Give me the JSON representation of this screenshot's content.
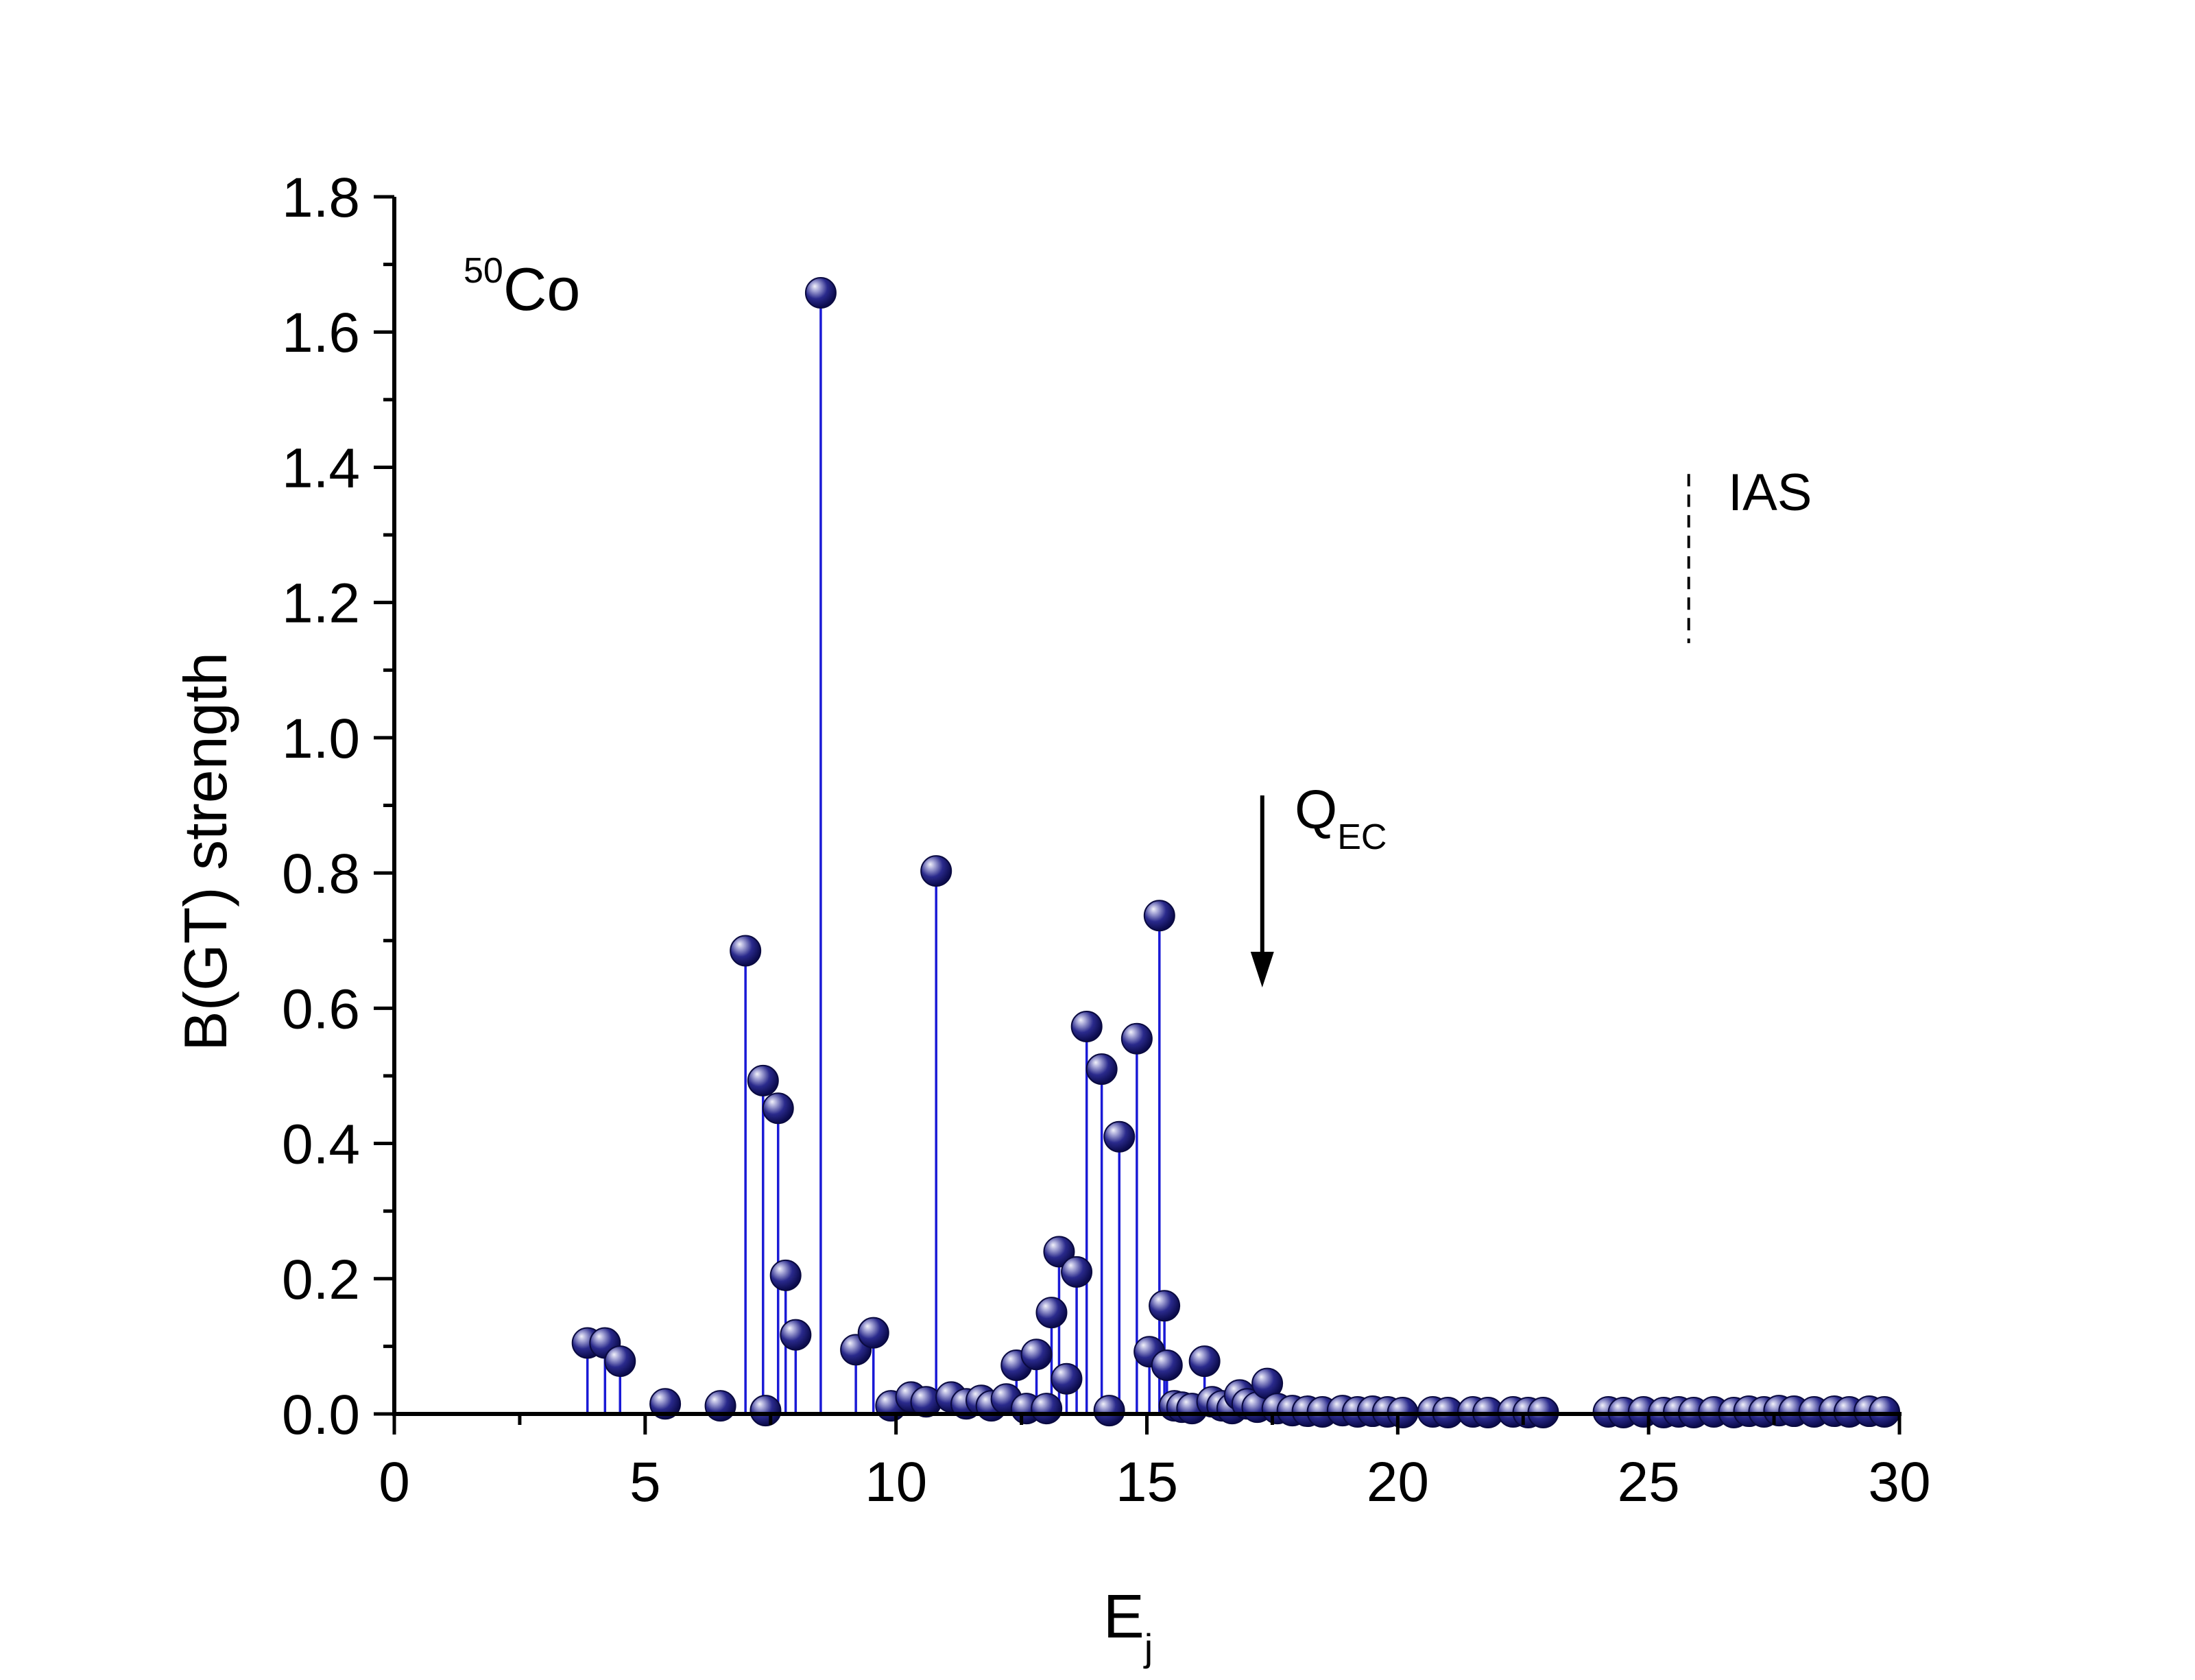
{
  "chart_data": {
    "type": "scatter",
    "style": "stem",
    "title": "",
    "xlabel": "E",
    "xlabel_subscript": "j",
    "ylabel": "B(GT) strength",
    "xlim": [
      0,
      30
    ],
    "ylim": [
      0,
      1.8
    ],
    "xticks": [
      0,
      5,
      10,
      15,
      20,
      25,
      30
    ],
    "xtick_labels": [
      "0",
      "5",
      "10",
      "15",
      "20",
      "25",
      "30"
    ],
    "yticks": [
      0,
      0.2,
      0.4,
      0.6,
      0.8,
      1.0,
      1.2,
      1.4,
      1.6,
      1.8
    ],
    "ytick_labels": [
      "0.0",
      "0.2",
      "0.4",
      "0.6",
      "0.8",
      "1.0",
      "1.2",
      "1.4",
      "1.6",
      "1.8"
    ],
    "grid": false,
    "legend": "none",
    "colors": {
      "stem": "#1a1ad6",
      "marker": "#1c1c7a",
      "marker_highlight": "#e4e4f2",
      "axis": "#000000"
    },
    "annotations": {
      "nucleus_mass": "50",
      "nucleus_symbol": "Co",
      "qec_main": "Q",
      "qec_sub": "EC",
      "qec_x": 17.3,
      "ias_label": "IAS",
      "ias_x": 25.8,
      "ias_y_range": [
        1.14,
        1.39
      ]
    },
    "series": [
      {
        "points": [
          [
            3.85,
            0.105
          ],
          [
            4.2,
            0.105
          ],
          [
            4.5,
            0.078
          ],
          [
            5.4,
            0.015
          ],
          [
            6.5,
            0.012
          ],
          [
            7.0,
            0.685
          ],
          [
            7.35,
            0.493
          ],
          [
            7.4,
            0.005
          ],
          [
            7.65,
            0.452
          ],
          [
            7.8,
            0.205
          ],
          [
            8.0,
            0.117
          ],
          [
            8.5,
            1.658
          ],
          [
            9.2,
            0.095
          ],
          [
            9.55,
            0.12
          ],
          [
            9.9,
            0.012
          ],
          [
            10.3,
            0.025
          ],
          [
            10.6,
            0.018
          ],
          [
            10.8,
            0.803
          ],
          [
            11.1,
            0.025
          ],
          [
            11.4,
            0.015
          ],
          [
            11.7,
            0.02
          ],
          [
            11.9,
            0.012
          ],
          [
            12.2,
            0.022
          ],
          [
            12.4,
            0.072
          ],
          [
            12.6,
            0.008
          ],
          [
            12.8,
            0.088
          ],
          [
            13.0,
            0.008
          ],
          [
            13.1,
            0.15
          ],
          [
            13.25,
            0.24
          ],
          [
            13.4,
            0.052
          ],
          [
            13.6,
            0.21
          ],
          [
            13.8,
            0.573
          ],
          [
            14.1,
            0.51
          ],
          [
            14.25,
            0.005
          ],
          [
            14.45,
            0.41
          ],
          [
            14.8,
            0.555
          ],
          [
            15.05,
            0.092
          ],
          [
            15.25,
            0.737
          ],
          [
            15.35,
            0.16
          ],
          [
            15.4,
            0.072
          ],
          [
            15.55,
            0.012
          ],
          [
            15.7,
            0.01
          ],
          [
            15.9,
            0.008
          ],
          [
            16.15,
            0.078
          ],
          [
            16.3,
            0.018
          ],
          [
            16.5,
            0.012
          ],
          [
            16.7,
            0.008
          ],
          [
            16.85,
            0.028
          ],
          [
            17.0,
            0.015
          ],
          [
            17.2,
            0.01
          ],
          [
            17.4,
            0.045
          ],
          [
            17.6,
            0.008
          ],
          [
            17.9,
            0.005
          ],
          [
            18.2,
            0.004
          ],
          [
            18.5,
            0.003
          ],
          [
            18.9,
            0.005
          ],
          [
            19.2,
            0.003
          ],
          [
            19.5,
            0.004
          ],
          [
            19.8,
            0.003
          ],
          [
            20.1,
            0.002
          ],
          [
            20.7,
            0.003
          ],
          [
            21.0,
            0.002
          ],
          [
            21.5,
            0.003
          ],
          [
            21.8,
            0.002
          ],
          [
            22.3,
            0.003
          ],
          [
            22.6,
            0.002
          ],
          [
            22.9,
            0.002
          ],
          [
            24.2,
            0.003
          ],
          [
            24.5,
            0.002
          ],
          [
            24.9,
            0.003
          ],
          [
            25.3,
            0.002
          ],
          [
            25.6,
            0.003
          ],
          [
            25.9,
            0.002
          ],
          [
            26.3,
            0.003
          ],
          [
            26.7,
            0.002
          ],
          [
            27.0,
            0.004
          ],
          [
            27.3,
            0.003
          ],
          [
            27.6,
            0.005
          ],
          [
            27.9,
            0.004
          ],
          [
            28.3,
            0.003
          ],
          [
            28.7,
            0.004
          ],
          [
            29.0,
            0.003
          ],
          [
            29.4,
            0.004
          ],
          [
            29.7,
            0.003
          ]
        ]
      }
    ]
  }
}
